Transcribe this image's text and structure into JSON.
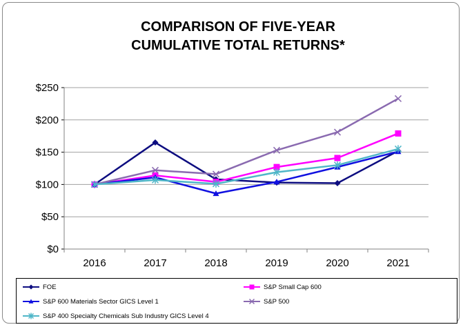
{
  "chart_data": {
    "type": "line",
    "title_lines": [
      "COMPARISON OF FIVE-YEAR",
      "CUMULATIVE TOTAL RETURNS*"
    ],
    "xlabel": "",
    "ylabel": "",
    "categories": [
      "2016",
      "2017",
      "2018",
      "2019",
      "2020",
      "2021"
    ],
    "ylim": [
      0,
      250
    ],
    "yticks": [
      0,
      50,
      100,
      150,
      200,
      250
    ],
    "ytick_labels": [
      "$0",
      "$50",
      "$100",
      "$150",
      "$200",
      "$250"
    ],
    "grid": true,
    "legend_position": "bottom",
    "series": [
      {
        "name": "FOE",
        "color": "#0d0d80",
        "marker": "diamond",
        "values": [
          100,
          165,
          108,
          103,
          102,
          152
        ]
      },
      {
        "name": "S&P Small Cap 600",
        "color": "#ff00ff",
        "marker": "square",
        "values": [
          100,
          114,
          104,
          127,
          141,
          179
        ]
      },
      {
        "name": "S&P 600 Materials Sector GICS Level 1",
        "color": "#1010e0",
        "marker": "triangle",
        "values": [
          100,
          111,
          86,
          104,
          127,
          151
        ]
      },
      {
        "name": "S&P 500",
        "color": "#8a6ab0",
        "marker": "x",
        "values": [
          100,
          122,
          116,
          153,
          181,
          233
        ]
      },
      {
        "name": "S&P  400 Specialty Chemicals Sub Industry GICS Level 4",
        "color": "#4fb6c8",
        "marker": "star",
        "values": [
          100,
          107,
          101,
          119,
          130,
          155
        ]
      }
    ]
  }
}
